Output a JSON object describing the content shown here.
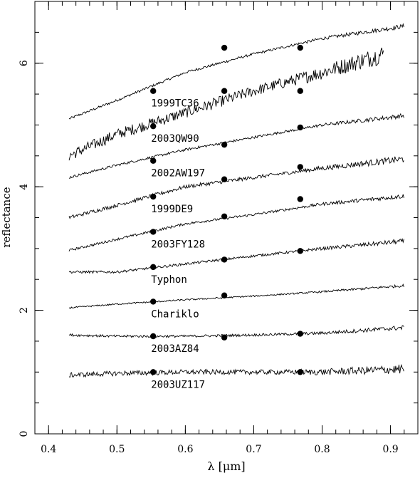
{
  "chart_data": {
    "type": "line",
    "xlabel": "λ [μm]",
    "ylabel": "reflectance",
    "xlim": [
      0.38,
      0.94
    ],
    "ylim": [
      0,
      7.0
    ],
    "x_ticks": [
      0.4,
      0.5,
      0.6,
      0.7,
      0.8,
      0.9
    ],
    "x_tick_labels": [
      "0.4",
      "0.5",
      "0.6",
      "0.7",
      "0.8",
      "0.9"
    ],
    "y_ticks": [
      0,
      2,
      4,
      6
    ],
    "y_tick_labels": [
      "0",
      "2",
      "4",
      "6"
    ],
    "marker_x": [
      0.553,
      0.657,
      0.768
    ],
    "series": [
      {
        "name": "1999TC36",
        "x": [
          0.43,
          0.5,
          0.6,
          0.7,
          0.8,
          0.92
        ],
        "y": [
          5.1,
          5.4,
          5.85,
          6.15,
          6.4,
          6.6
        ],
        "noise": 0.02,
        "markers": [
          5.55,
          6.25,
          6.25
        ]
      },
      {
        "name": "2003QW90",
        "x": [
          0.43,
          0.5,
          0.6,
          0.7,
          0.8,
          0.89
        ],
        "y": [
          4.5,
          4.85,
          5.2,
          5.55,
          5.85,
          6.15
        ],
        "noise": 0.09,
        "markers": [
          4.98,
          5.55,
          5.55
        ]
      },
      {
        "name": "2002AW197",
        "x": [
          0.43,
          0.5,
          0.6,
          0.7,
          0.8,
          0.92
        ],
        "y": [
          4.15,
          4.35,
          4.6,
          4.8,
          5.0,
          5.15
        ],
        "noise": 0.02,
        "markers": [
          4.42,
          4.68,
          4.96
        ]
      },
      {
        "name": "1999DE9",
        "x": [
          0.43,
          0.5,
          0.6,
          0.7,
          0.8,
          0.92
        ],
        "y": [
          3.5,
          3.7,
          4.0,
          4.15,
          4.3,
          4.45
        ],
        "noise": 0.03,
        "markers": [
          3.84,
          4.12,
          4.32
        ]
      },
      {
        "name": "2003FY128",
        "x": [
          0.43,
          0.5,
          0.6,
          0.7,
          0.8,
          0.92
        ],
        "y": [
          2.97,
          3.15,
          3.4,
          3.55,
          3.72,
          3.85
        ],
        "noise": 0.02,
        "markers": [
          3.27,
          3.52,
          3.8
        ]
      },
      {
        "name": "Typhon",
        "x": [
          0.43,
          0.5,
          0.6,
          0.7,
          0.8,
          0.92
        ],
        "y": [
          2.62,
          2.62,
          2.75,
          2.88,
          3.0,
          3.12
        ],
        "noise": 0.02,
        "markers": [
          2.7,
          2.82,
          2.96
        ]
      },
      {
        "name": "Chariklo",
        "x": [
          0.43,
          0.5,
          0.6,
          0.7,
          0.8,
          0.92
        ],
        "y": [
          2.04,
          2.1,
          2.17,
          2.23,
          2.3,
          2.4
        ],
        "noise": 0.012,
        "markers": [
          2.14,
          2.24,
          null
        ]
      },
      {
        "name": "2003AZ84",
        "x": [
          0.43,
          0.5,
          0.6,
          0.7,
          0.8,
          0.92
        ],
        "y": [
          1.6,
          1.58,
          1.58,
          1.6,
          1.63,
          1.72
        ],
        "noise": 0.02,
        "markers": [
          1.58,
          1.56,
          1.62
        ]
      },
      {
        "name": "2003UZ117",
        "x": [
          0.43,
          0.5,
          0.6,
          0.7,
          0.8,
          0.92
        ],
        "y": [
          0.95,
          0.98,
          1.0,
          1.0,
          1.0,
          1.05
        ],
        "noise": 0.04,
        "markers": [
          1.0,
          null,
          1.0
        ]
      }
    ]
  }
}
